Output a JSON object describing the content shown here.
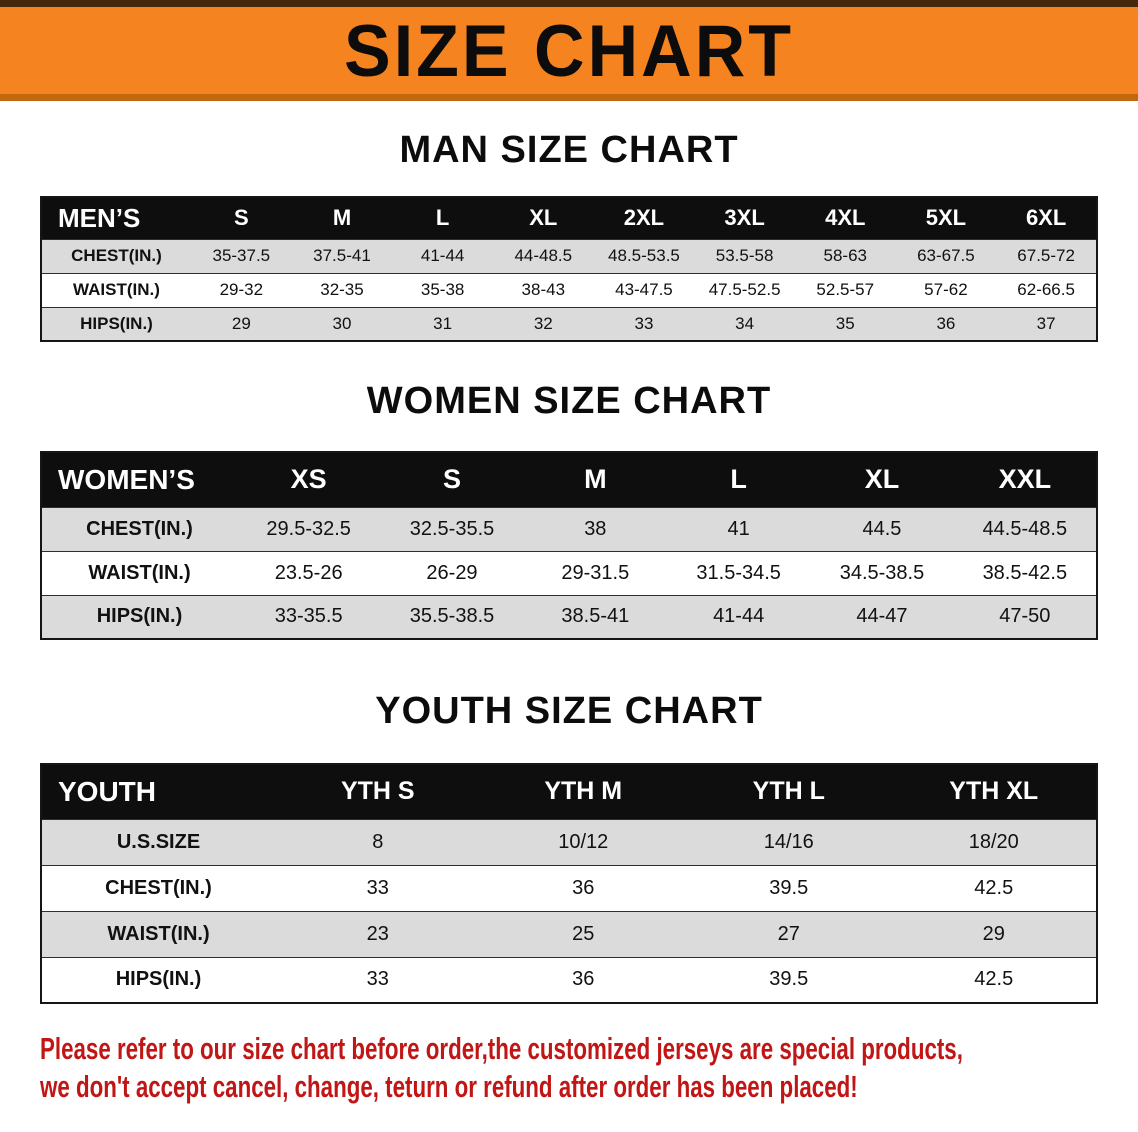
{
  "banner": {
    "title": "SIZE CHART",
    "background_color": "#f5831f"
  },
  "sections": [
    {
      "heading": "MAN SIZE CHART",
      "corner_label": "MEN’S",
      "columns": [
        "S",
        "M",
        "L",
        "XL",
        "2XL",
        "3XL",
        "4XL",
        "5XL",
        "6XL"
      ],
      "rows": [
        {
          "label": "CHEST(IN.)",
          "values": [
            "35-37.5",
            "37.5-41",
            "41-44",
            "44-48.5",
            "48.5-53.5",
            "53.5-58",
            "58-63",
            "63-67.5",
            "67.5-72"
          ]
        },
        {
          "label": "WAIST(IN.)",
          "values": [
            "29-32",
            "32-35",
            "35-38",
            "38-43",
            "43-47.5",
            "47.5-52.5",
            "52.5-57",
            "57-62",
            "62-66.5"
          ]
        },
        {
          "label": "HIPS(IN.)",
          "values": [
            "29",
            "30",
            "31",
            "32",
            "33",
            "34",
            "35",
            "36",
            "37"
          ]
        }
      ]
    },
    {
      "heading": "WOMEN SIZE CHART",
      "corner_label": "WOMEN’S",
      "columns": [
        "XS",
        "S",
        "M",
        "L",
        "XL",
        "XXL"
      ],
      "rows": [
        {
          "label": "CHEST(IN.)",
          "values": [
            "29.5-32.5",
            "32.5-35.5",
            "38",
            "41",
            "44.5",
            "44.5-48.5"
          ]
        },
        {
          "label": "WAIST(IN.)",
          "values": [
            "23.5-26",
            "26-29",
            "29-31.5",
            "31.5-34.5",
            "34.5-38.5",
            "38.5-42.5"
          ]
        },
        {
          "label": "HIPS(IN.)",
          "values": [
            "33-35.5",
            "35.5-38.5",
            "38.5-41",
            "41-44",
            "44-47",
            "47-50"
          ]
        }
      ]
    },
    {
      "heading": "YOUTH SIZE CHART",
      "corner_label": "YOUTH",
      "columns": [
        "YTH S",
        "YTH M",
        "YTH L",
        "YTH XL"
      ],
      "rows": [
        {
          "label": "U.S.SIZE",
          "values": [
            "8",
            "10/12",
            "14/16",
            "18/20"
          ]
        },
        {
          "label": "CHEST(IN.)",
          "values": [
            "33",
            "36",
            "39.5",
            "42.5"
          ]
        },
        {
          "label": "WAIST(IN.)",
          "values": [
            "23",
            "25",
            "27",
            "29"
          ]
        },
        {
          "label": "HIPS(IN.)",
          "values": [
            "33",
            "36",
            "39.5",
            "42.5"
          ]
        }
      ]
    }
  ],
  "footer": {
    "line1": "Please refer to our size chart before order,the customized jerseys are special products,",
    "line2": "we don't accept cancel, change, teturn or refund after order has been placed!",
    "text_color": "#c11616"
  }
}
